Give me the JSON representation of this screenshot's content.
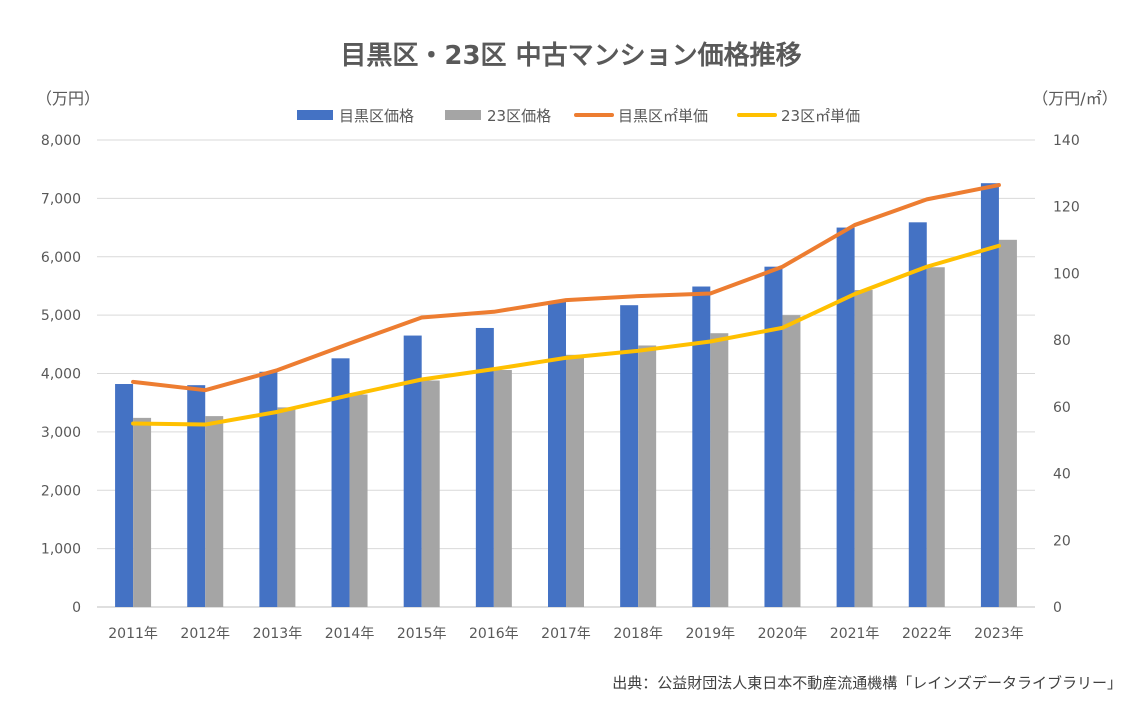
{
  "chart_data": {
    "type": "bar",
    "title": "目黒区・23区 中古マンション価格推移",
    "y_unit_label": "（万円）",
    "y2_unit_label": "（万円/㎡）",
    "source": "出典：公益財団法人東日本不動産流通機構「レインズデータライブラリー」",
    "categories": [
      "2011年",
      "2012年",
      "2013年",
      "2014年",
      "2015年",
      "2016年",
      "2017年",
      "2018年",
      "2019年",
      "2020年",
      "2021年",
      "2022年",
      "2023年"
    ],
    "ylim": [
      0,
      8000
    ],
    "y_ticks": [
      0,
      1000,
      2000,
      3000,
      4000,
      5000,
      6000,
      7000,
      8000
    ],
    "y_tick_labels": [
      "0",
      "1,000",
      "2,000",
      "3,000",
      "4,000",
      "5,000",
      "6,000",
      "7,000",
      "8,000"
    ],
    "y2lim": [
      0,
      140
    ],
    "y2_ticks": [
      0,
      20,
      40,
      60,
      80,
      100,
      120,
      140
    ],
    "y2_tick_labels": [
      "0",
      "20",
      "40",
      "60",
      "80",
      "100",
      "120",
      "140"
    ],
    "grid": true,
    "legend_position": "top",
    "series": [
      {
        "name": "目黒区価格",
        "kind": "bar",
        "axis": "left",
        "color": "#4472C4",
        "values": [
          3820,
          3800,
          4030,
          4260,
          4650,
          4780,
          5230,
          5170,
          5490,
          5830,
          6500,
          6590,
          7260
        ]
      },
      {
        "name": "23区価格",
        "kind": "bar",
        "axis": "left",
        "color": "#A5A5A5",
        "values": [
          3240,
          3270,
          3420,
          3640,
          3880,
          4060,
          4320,
          4480,
          4690,
          5000,
          5430,
          5820,
          6290
        ]
      },
      {
        "name": "目黒区㎡単価",
        "kind": "line",
        "axis": "right",
        "color": "#ED7D31",
        "values": [
          67.5,
          65,
          71,
          79,
          86.8,
          88.5,
          92,
          93.2,
          94,
          102,
          114.5,
          122.2,
          126.5
        ]
      },
      {
        "name": "23区㎡単価",
        "kind": "line",
        "axis": "right",
        "color": "#FFC000",
        "values": [
          55,
          54.7,
          58.5,
          63.5,
          68.2,
          71.3,
          74.7,
          76.8,
          79.6,
          83.7,
          93.8,
          102,
          108.3
        ]
      }
    ]
  }
}
